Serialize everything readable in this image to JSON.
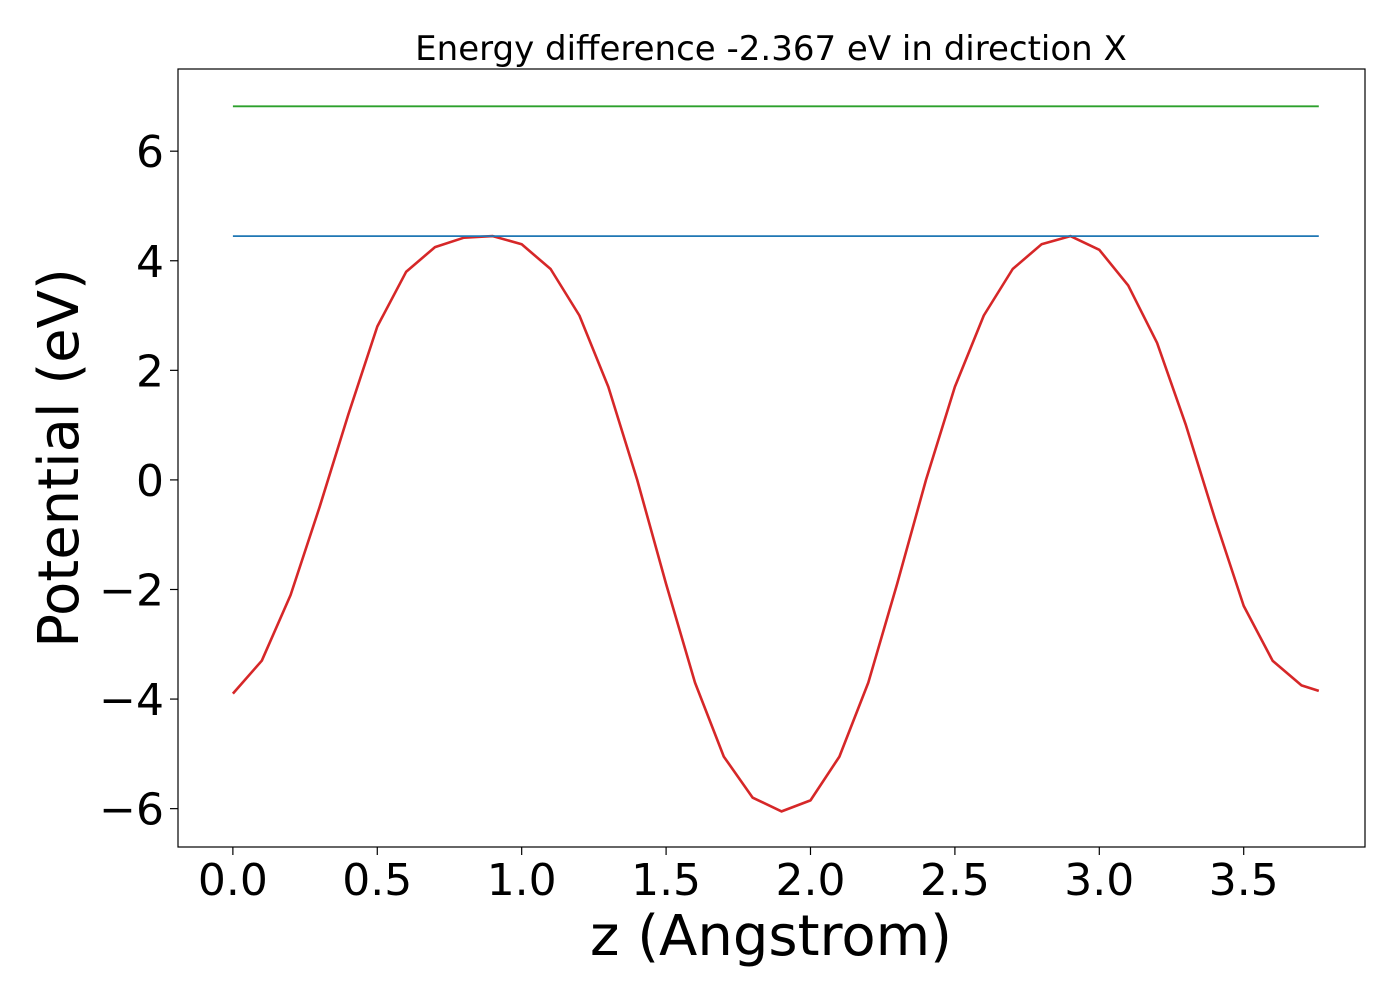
{
  "chart_data": {
    "type": "line",
    "title": "Energy difference -2.367 eV in direction X",
    "xlabel": "z (Angstrom)",
    "ylabel": "Potential (eV)",
    "xlim": [
      -0.19,
      3.92
    ],
    "ylim": [
      -6.7,
      7.5
    ],
    "xticks": [
      0.0,
      0.5,
      1.0,
      1.5,
      2.0,
      2.5,
      3.0,
      3.5
    ],
    "xtick_labels": [
      "0.0",
      "0.5",
      "1.0",
      "1.5",
      "2.0",
      "2.5",
      "3.0",
      "3.5"
    ],
    "yticks": [
      -6,
      -4,
      -2,
      0,
      2,
      4,
      6
    ],
    "ytick_labels": [
      "−6",
      "−4",
      "−2",
      "0",
      "2",
      "4",
      "6"
    ],
    "grid": false,
    "series": [
      {
        "color": "#d62728",
        "x": [
          0.0,
          0.1,
          0.2,
          0.3,
          0.4,
          0.5,
          0.6,
          0.7,
          0.8,
          0.9,
          1.0,
          1.1,
          1.2,
          1.3,
          1.4,
          1.5,
          1.6,
          1.7,
          1.8,
          1.9,
          2.0,
          2.1,
          2.2,
          2.3,
          2.4,
          2.5,
          2.6,
          2.7,
          2.8,
          2.9,
          3.0,
          3.1,
          3.2,
          3.3,
          3.4,
          3.5,
          3.6,
          3.7,
          3.76
        ],
        "y": [
          -3.9,
          -3.3,
          -2.1,
          -0.5,
          1.2,
          2.8,
          3.8,
          4.25,
          4.42,
          4.45,
          4.3,
          3.85,
          3.0,
          1.7,
          0.0,
          -1.9,
          -3.7,
          -5.05,
          -5.8,
          -6.05,
          -5.85,
          -5.05,
          -3.7,
          -1.9,
          0.0,
          1.7,
          3.0,
          3.85,
          4.3,
          4.45,
          4.2,
          3.55,
          2.5,
          1.0,
          -0.7,
          -2.3,
          -3.3,
          -3.75,
          -3.85
        ]
      },
      {
        "color": "#1f77b4",
        "x": [
          0.0,
          3.76
        ],
        "y": [
          4.45,
          4.45
        ]
      },
      {
        "color": "#2ca02c",
        "x": [
          0.0,
          3.76
        ],
        "y": [
          6.82,
          6.82
        ]
      }
    ]
  }
}
